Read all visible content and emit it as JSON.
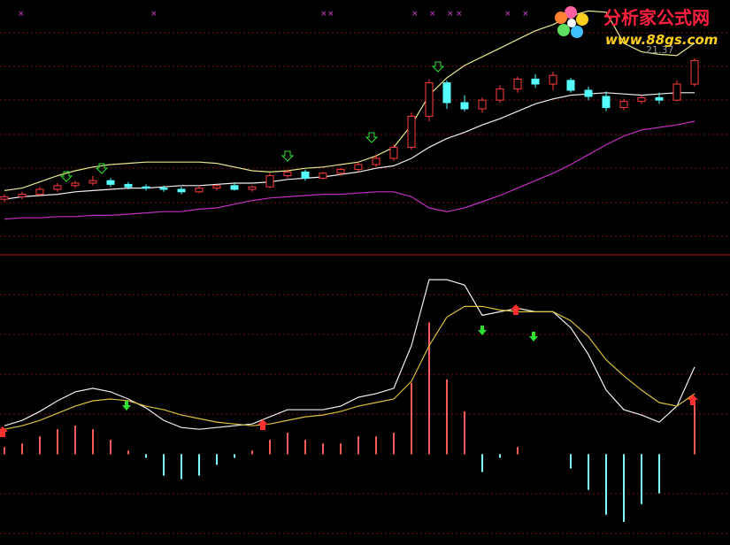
{
  "logo": {
    "title": "分析家公式网",
    "url": "www.88gs.com"
  },
  "chart_data": [
    {
      "type": "candlestick",
      "annotation": "21.37",
      "ylim": [
        6,
        26
      ],
      "up_color": "#ff3c3c",
      "down_color": "#54ffff",
      "open": [
        10.2,
        10.4,
        10.6,
        11.0,
        11.3,
        11.5,
        11.7,
        11.4,
        11.2,
        11.1,
        11.0,
        10.8,
        11.1,
        11.3,
        11.0,
        11.2,
        12.1,
        12.4,
        11.9,
        12.3,
        12.6,
        13.0,
        13.5,
        14.4,
        16.9,
        19.6,
        18.0,
        17.5,
        18.2,
        19.1,
        19.9,
        19.5,
        19.8,
        19.0,
        18.5,
        17.6,
        18.1,
        18.4,
        18.2,
        19.5
      ],
      "high": [
        10.6,
        10.8,
        11.2,
        11.5,
        11.7,
        12.1,
        11.9,
        11.6,
        11.4,
        11.3,
        11.2,
        11.3,
        11.4,
        11.5,
        11.3,
        12.3,
        12.6,
        12.6,
        12.4,
        12.7,
        13.2,
        13.8,
        14.6,
        17.2,
        19.9,
        19.8,
        18.6,
        18.4,
        19.4,
        20.1,
        20.3,
        20.5,
        20.0,
        19.3,
        18.9,
        18.3,
        18.6,
        18.8,
        19.8,
        21.6
      ],
      "low": [
        10.0,
        10.2,
        10.5,
        10.8,
        11.1,
        11.3,
        11.2,
        11.0,
        10.9,
        10.8,
        10.6,
        10.7,
        10.9,
        10.9,
        10.8,
        11.1,
        11.9,
        11.7,
        11.8,
        12.1,
        12.4,
        12.8,
        13.3,
        14.2,
        16.5,
        17.5,
        17.3,
        17.2,
        18.0,
        18.8,
        19.2,
        19.0,
        18.8,
        18.2,
        17.3,
        17.4,
        17.9,
        17.9,
        18.1,
        19.3
      ],
      "close": [
        10.4,
        10.6,
        11.0,
        11.3,
        11.5,
        11.7,
        11.4,
        11.2,
        11.1,
        11.0,
        10.8,
        11.1,
        11.3,
        11.0,
        11.2,
        12.1,
        12.4,
        11.9,
        12.3,
        12.6,
        13.0,
        13.5,
        14.4,
        16.9,
        19.6,
        18.0,
        17.5,
        18.2,
        19.1,
        19.9,
        19.5,
        20.2,
        19.0,
        18.5,
        17.6,
        18.1,
        18.4,
        18.2,
        19.5,
        21.4
      ],
      "series": [
        {
          "color": "#e8e890",
          "values": [
            10.9,
            11.1,
            11.6,
            12.1,
            12.5,
            12.8,
            13.0,
            13.1,
            13.2,
            13.2,
            13.2,
            13.2,
            13.1,
            12.8,
            12.5,
            12.4,
            12.5,
            12.7,
            12.8,
            13.0,
            13.2,
            13.7,
            14.4,
            16.2,
            18.6,
            20.0,
            21.0,
            21.7,
            22.4,
            23.1,
            23.8,
            24.3,
            25.0,
            25.4,
            25.3,
            22.8,
            22.1,
            21.9,
            21.8,
            22.8
          ]
        },
        {
          "color": "#f0f0f0",
          "values": [
            10.2,
            10.4,
            10.5,
            10.6,
            10.8,
            10.9,
            11.0,
            11.1,
            11.1,
            11.2,
            11.3,
            11.3,
            11.4,
            11.5,
            11.5,
            11.6,
            11.8,
            11.9,
            12.0,
            12.2,
            12.4,
            12.7,
            12.9,
            13.5,
            14.4,
            15.1,
            15.6,
            16.2,
            16.7,
            17.3,
            17.9,
            18.3,
            18.6,
            18.7,
            18.8,
            18.7,
            18.6,
            18.7,
            18.8,
            18.8
          ]
        },
        {
          "color": "#c030c0",
          "values": [
            8.6,
            8.7,
            8.7,
            8.8,
            8.8,
            8.9,
            8.9,
            9.0,
            9.1,
            9.2,
            9.2,
            9.4,
            9.5,
            9.8,
            10.1,
            10.3,
            10.4,
            10.5,
            10.6,
            10.6,
            10.7,
            10.8,
            10.8,
            10.4,
            9.5,
            9.2,
            9.5,
            10.0,
            10.5,
            11.1,
            11.7,
            12.3,
            13.0,
            13.8,
            14.6,
            15.3,
            15.8,
            16.0,
            16.2,
            16.5
          ]
        }
      ]
    },
    {
      "type": "macd",
      "ylim": [
        -0.5,
        1.1
      ],
      "series": [
        {
          "color": "#f0f0f0",
          "values": [
            0.16,
            0.19,
            0.24,
            0.3,
            0.35,
            0.37,
            0.35,
            0.31,
            0.26,
            0.19,
            0.15,
            0.14,
            0.15,
            0.16,
            0.17,
            0.21,
            0.25,
            0.25,
            0.25,
            0.27,
            0.32,
            0.34,
            0.37,
            0.61,
            0.98,
            0.98,
            0.95,
            0.78,
            0.8,
            0.82,
            0.8,
            0.8,
            0.71,
            0.56,
            0.36,
            0.25,
            0.22,
            0.18,
            0.27,
            0.49
          ]
        },
        {
          "color": "#d8c040",
          "values": [
            0.14,
            0.16,
            0.19,
            0.23,
            0.27,
            0.3,
            0.31,
            0.3,
            0.27,
            0.25,
            0.22,
            0.2,
            0.18,
            0.17,
            0.16,
            0.17,
            0.19,
            0.21,
            0.22,
            0.24,
            0.27,
            0.29,
            0.31,
            0.41,
            0.61,
            0.77,
            0.83,
            0.83,
            0.81,
            0.8,
            0.8,
            0.8,
            0.75,
            0.66,
            0.53,
            0.44,
            0.36,
            0.29,
            0.27,
            0.34
          ]
        }
      ],
      "histogram": {
        "positive_color": "#ff5a5a",
        "negative_color": "#80ffff",
        "values": [
          0.04,
          0.06,
          0.1,
          0.14,
          0.16,
          0.14,
          0.08,
          0.02,
          -0.02,
          -0.12,
          -0.14,
          -0.12,
          -0.06,
          -0.02,
          0.02,
          0.08,
          0.12,
          0.08,
          0.06,
          0.06,
          0.1,
          0.1,
          0.12,
          0.4,
          0.74,
          0.42,
          0.24,
          -0.1,
          -0.02,
          0.04,
          0,
          0,
          -0.08,
          -0.2,
          -0.34,
          -0.38,
          -0.28,
          -0.22,
          0,
          0.3
        ]
      }
    }
  ]
}
